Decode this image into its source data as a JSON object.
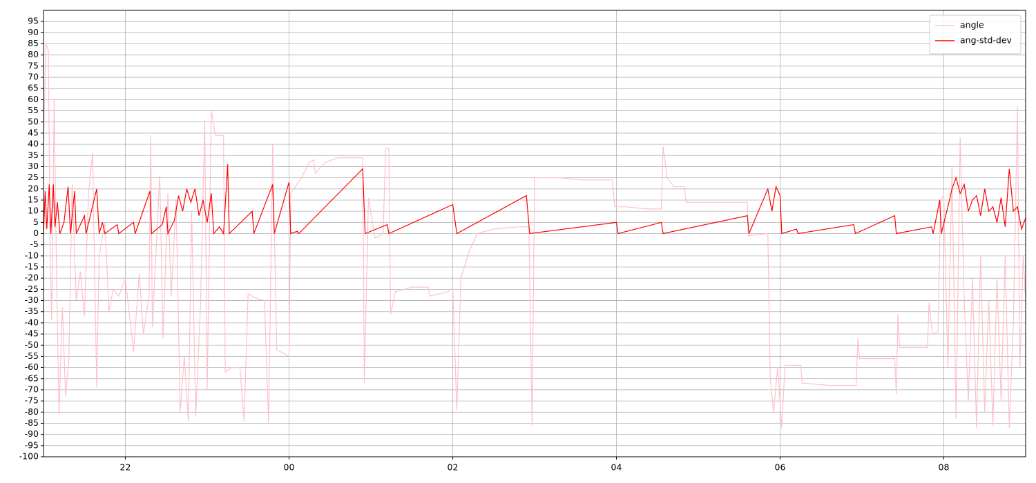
{
  "chart_data": {
    "type": "line",
    "xlim": [
      21,
      33
    ],
    "xticks": [
      22,
      {
        "value": 24,
        "label": "00"
      },
      {
        "value": 26,
        "label": "02"
      },
      {
        "value": 28,
        "label": "04"
      },
      {
        "value": 30,
        "label": "06"
      },
      {
        "value": 32,
        "label": "08"
      }
    ],
    "ylim": [
      -100,
      100
    ],
    "yticks": [
      -100,
      -95,
      -90,
      -85,
      -80,
      -75,
      -70,
      -65,
      -60,
      -55,
      -50,
      -45,
      -40,
      -35,
      -30,
      -25,
      -20,
      -15,
      -10,
      -5,
      0,
      5,
      10,
      15,
      20,
      25,
      30,
      35,
      40,
      45,
      50,
      55,
      60,
      65,
      70,
      75,
      80,
      85,
      90,
      95
    ],
    "grid": true,
    "legend": "upper right",
    "series": [
      {
        "name": "angle",
        "color": "pink",
        "x": [
          21.0,
          21.03,
          21.06,
          21.08,
          21.1,
          21.13,
          21.16,
          21.19,
          21.23,
          21.27,
          21.31,
          21.35,
          21.4,
          21.45,
          21.5,
          21.55,
          21.6,
          21.65,
          21.68,
          21.75,
          21.8,
          21.85,
          21.92,
          22.0,
          22.1,
          22.17,
          22.22,
          22.29,
          22.31,
          22.33,
          22.42,
          22.46,
          22.52,
          22.56,
          22.62,
          22.67,
          22.72,
          22.77,
          22.81,
          22.86,
          22.92,
          22.97,
          23.0,
          23.05,
          23.1,
          23.2,
          23.22,
          23.3,
          23.4,
          23.45,
          23.5,
          23.6,
          23.7,
          23.75,
          23.8,
          23.85,
          23.95,
          24.0,
          24.02,
          24.15,
          24.25,
          24.3,
          24.32,
          24.45,
          24.6,
          24.8,
          24.9,
          24.92,
          24.97,
          25.05,
          25.15,
          25.18,
          25.22,
          25.24,
          25.3,
          25.5,
          25.7,
          25.72,
          25.95,
          26.0,
          26.05,
          26.1,
          26.2,
          26.3,
          26.5,
          26.8,
          26.93,
          26.97,
          27.0,
          27.3,
          27.6,
          27.95,
          27.98,
          28.1,
          28.4,
          28.55,
          28.57,
          28.62,
          28.7,
          28.83,
          28.85,
          29.2,
          29.6,
          29.61,
          29.85,
          29.88,
          29.92,
          29.97,
          30.02,
          30.06,
          30.25,
          30.27,
          30.6,
          30.93,
          30.95,
          30.97,
          31.4,
          31.42,
          31.44,
          31.46,
          31.65,
          31.8,
          31.82,
          31.86,
          31.93,
          31.96,
          32.0,
          32.05,
          32.1,
          32.15,
          32.2,
          32.25,
          32.3,
          32.35,
          32.4,
          32.45,
          32.5,
          32.55,
          32.6,
          32.65,
          32.7,
          32.75,
          32.8,
          32.85,
          32.9,
          32.93,
          32.97,
          33.0
        ],
        "values": [
          40,
          85,
          82,
          -5,
          -39,
          60,
          -20,
          -81,
          -33,
          -73,
          -56,
          22,
          -30,
          -17,
          -37,
          18,
          36,
          -69,
          -10,
          5,
          -35,
          -25,
          -28,
          -20,
          -53,
          -18,
          -45,
          -28,
          44,
          -42,
          26,
          -47,
          18,
          -28,
          15,
          -80,
          -55,
          -84,
          10,
          -82,
          -30,
          51,
          -70,
          55,
          44,
          44,
          -62,
          -60,
          -60,
          -84,
          -27,
          -29,
          -30,
          -85,
          40,
          -52,
          -54,
          -55,
          18,
          25,
          32,
          33,
          27,
          32,
          34,
          34,
          34,
          -67,
          16,
          -2,
          0,
          38,
          38,
          -36,
          -26,
          -24,
          -24,
          -28,
          -26,
          -24,
          -79,
          -20,
          -8,
          0,
          2,
          3,
          3,
          -86,
          25,
          25,
          24,
          24,
          12,
          12,
          11,
          11,
          39,
          25,
          21,
          21,
          14,
          14,
          14,
          -1,
          0,
          -65,
          -80,
          -60,
          -87,
          -59,
          -59,
          -67,
          -68,
          -68,
          -47,
          -56,
          -56,
          -72,
          -36,
          -51,
          -51,
          -51,
          -31,
          -45,
          -44,
          15,
          17,
          -60,
          30,
          -83,
          43,
          -30,
          -75,
          -20,
          -87,
          -10,
          -80,
          -30,
          -86,
          -20,
          -75,
          -10,
          -87,
          -40,
          57,
          -60,
          -10,
          -30
        ]
      },
      {
        "name": "ang-std-dev",
        "color": "red",
        "x": [
          21.0,
          21.02,
          21.04,
          21.07,
          21.09,
          21.12,
          21.14,
          21.17,
          21.2,
          21.25,
          21.3,
          21.33,
          21.38,
          21.4,
          21.5,
          21.52,
          21.65,
          21.68,
          21.72,
          21.75,
          21.9,
          21.92,
          22.1,
          22.12,
          22.3,
          22.32,
          22.45,
          22.5,
          22.52,
          22.6,
          22.65,
          22.7,
          22.75,
          22.8,
          22.85,
          22.9,
          22.95,
          23.0,
          23.05,
          23.08,
          23.15,
          23.2,
          23.25,
          23.27,
          23.55,
          23.57,
          23.8,
          23.82,
          24.0,
          24.02,
          24.1,
          24.12,
          24.9,
          24.93,
          25.2,
          25.22,
          26.0,
          26.05,
          26.9,
          26.94,
          28.0,
          28.02,
          28.55,
          28.57,
          29.6,
          29.62,
          29.85,
          29.9,
          29.95,
          30.0,
          30.02,
          30.2,
          30.22,
          30.9,
          30.92,
          31.4,
          31.42,
          31.85,
          31.87,
          31.95,
          31.97,
          32.05,
          32.1,
          32.15,
          32.2,
          32.25,
          32.3,
          32.35,
          32.4,
          32.45,
          32.5,
          32.55,
          32.6,
          32.65,
          32.7,
          32.75,
          32.8,
          32.85,
          32.9,
          32.95,
          33.0
        ],
        "values": [
          0,
          19,
          2,
          22,
          0,
          22,
          3,
          14,
          0,
          5,
          21,
          0,
          19,
          0,
          8,
          0,
          20,
          0,
          5,
          0,
          4,
          0,
          5,
          0,
          19,
          0,
          4,
          12,
          0,
          6,
          17,
          10,
          20,
          14,
          20,
          8,
          15,
          5,
          18,
          0,
          3,
          0,
          31,
          0,
          10,
          0,
          22,
          0,
          23,
          0,
          1,
          0,
          29,
          0,
          4,
          0,
          13,
          0,
          17,
          0,
          5,
          0,
          5,
          0,
          8,
          0,
          20,
          10,
          21,
          17,
          0,
          2,
          0,
          4,
          0,
          8,
          0,
          3,
          0,
          15,
          0,
          12,
          20,
          25,
          18,
          22,
          10,
          15,
          17,
          8,
          20,
          10,
          12,
          5,
          16,
          3,
          29,
          10,
          12,
          2,
          7
        ]
      }
    ]
  }
}
